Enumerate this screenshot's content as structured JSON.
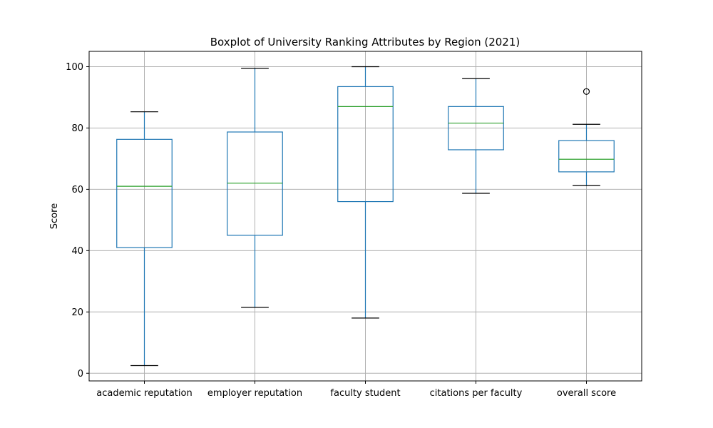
{
  "chart_data": {
    "type": "boxplot",
    "title": "Boxplot of University Ranking Attributes by Region (2021)",
    "xlabel": "",
    "ylabel": "Score",
    "ylim": [
      -2.5,
      105
    ],
    "yticks": [
      0,
      20,
      40,
      60,
      80,
      100
    ],
    "grid": true,
    "categories": [
      "academic reputation",
      "employer reputation",
      "faculty student",
      "citations per faculty",
      "overall score"
    ],
    "boxes": [
      {
        "category": "academic reputation",
        "whisker_low": 2.5,
        "q1": 41,
        "median": 61,
        "q3": 76.3,
        "whisker_high": 85.3,
        "outliers": []
      },
      {
        "category": "employer reputation",
        "whisker_low": 21.5,
        "q1": 45,
        "median": 62,
        "q3": 78.7,
        "whisker_high": 99.5,
        "outliers": []
      },
      {
        "category": "faculty student",
        "whisker_low": 18,
        "q1": 56,
        "median": 87,
        "q3": 93.5,
        "whisker_high": 100,
        "outliers": []
      },
      {
        "category": "citations per faculty",
        "whisker_low": 58.7,
        "q1": 72.9,
        "median": 81.6,
        "q3": 87,
        "whisker_high": 96.1,
        "outliers": []
      },
      {
        "category": "overall score",
        "whisker_low": 61.2,
        "q1": 65.7,
        "median": 69.8,
        "q3": 75.9,
        "whisker_high": 81.2,
        "outliers": [
          91.9
        ]
      }
    ],
    "colors": {
      "box": "#1f77b4",
      "median": "#2ca02c",
      "whisker_cap": "#000000",
      "outlier": "#000000",
      "grid": "#b0b0b0"
    }
  }
}
